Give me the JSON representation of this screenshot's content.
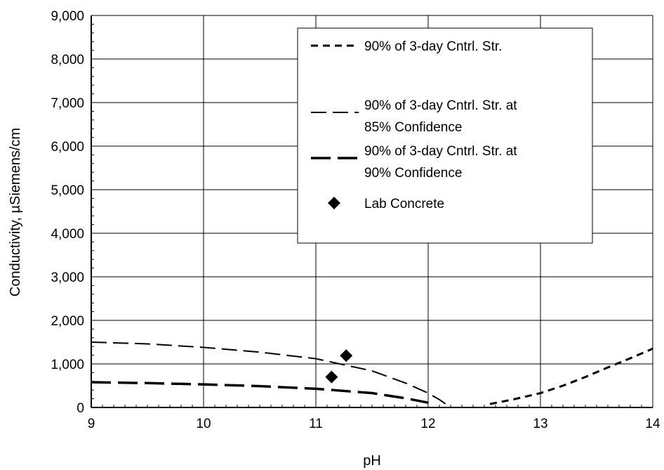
{
  "chart_data": {
    "type": "line",
    "title": "",
    "xlabel": "pH",
    "ylabel": "Conductivity, µSiemens/cm",
    "xlim": [
      9,
      14
    ],
    "ylim": [
      0,
      9000
    ],
    "x_ticks": [
      9,
      10,
      11,
      12,
      13,
      14
    ],
    "x_tick_labels": [
      "9",
      "10",
      "11",
      "12",
      "13",
      "14"
    ],
    "y_ticks": [
      0,
      1000,
      2000,
      3000,
      4000,
      5000,
      6000,
      7000,
      8000,
      9000
    ],
    "y_tick_labels": [
      "0",
      "1,000",
      "2,000",
      "3,000",
      "4,000",
      "5,000",
      "6,000",
      "7,000",
      "8,000",
      "9,000"
    ],
    "grid": true,
    "legend_position": "top-right",
    "series": [
      {
        "name": "90% of 3-day Cntrl. Str.",
        "style": "short-dash",
        "x": [
          12.55,
          12.75,
          13.0,
          13.2,
          13.4,
          13.6,
          13.8,
          14.0
        ],
        "y": [
          80,
          180,
          330,
          500,
          700,
          920,
          1130,
          1350
        ]
      },
      {
        "name": "90% of 3-day Cntrl. Str. at 85% Confidence",
        "style": "long-dash-thin",
        "x": [
          9.0,
          9.5,
          10.0,
          10.5,
          11.0,
          11.5,
          11.8,
          12.0,
          12.1,
          12.2
        ],
        "y": [
          1500,
          1460,
          1380,
          1270,
          1120,
          840,
          560,
          330,
          180,
          0
        ]
      },
      {
        "name": "90% of 3-day Cntrl. Str. at 90% Confidence",
        "style": "long-dash-thick",
        "x": [
          9.0,
          9.5,
          10.0,
          10.5,
          11.0,
          11.5,
          11.8,
          12.0
        ],
        "y": [
          580,
          560,
          530,
          490,
          430,
          330,
          210,
          110
        ]
      },
      {
        "name": "Lab Concrete",
        "style": "diamond-marker",
        "x": [
          11.14,
          11.27
        ],
        "y": [
          700,
          1190
        ]
      }
    ]
  }
}
